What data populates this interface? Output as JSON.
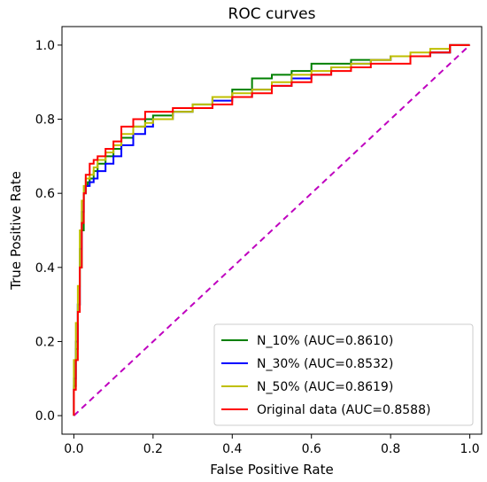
{
  "chart_data": {
    "type": "line",
    "title": "ROC curves",
    "xlabel": "False Positive Rate",
    "ylabel": "True Positive Rate",
    "xlim": [
      -0.03,
      1.03
    ],
    "ylim": [
      -0.05,
      1.05
    ],
    "xticks": [
      "0.0",
      "0.2",
      "0.4",
      "0.6",
      "0.8",
      "1.0"
    ],
    "yticks": [
      "0.0",
      "0.2",
      "0.4",
      "0.6",
      "0.8",
      "1.0"
    ],
    "grid": false,
    "legend_position": "lower-right",
    "reference_line": {
      "color": "#bf00bf",
      "style": "dashed",
      "x": [
        0,
        1
      ],
      "y": [
        0,
        1
      ]
    },
    "series": [
      {
        "name": "N_10% (AUC=0.8610)",
        "color": "#008000",
        "x": [
          0.0,
          0.005,
          0.01,
          0.015,
          0.02,
          0.025,
          0.03,
          0.035,
          0.04,
          0.05,
          0.06,
          0.08,
          0.1,
          0.12,
          0.15,
          0.18,
          0.2,
          0.25,
          0.3,
          0.35,
          0.4,
          0.45,
          0.5,
          0.55,
          0.6,
          0.65,
          0.7,
          0.75,
          0.8,
          0.85,
          0.9,
          0.95,
          1.0
        ],
        "y": [
          0.0,
          0.08,
          0.18,
          0.3,
          0.4,
          0.5,
          0.6,
          0.62,
          0.63,
          0.64,
          0.66,
          0.68,
          0.7,
          0.72,
          0.75,
          0.78,
          0.8,
          0.81,
          0.82,
          0.84,
          0.86,
          0.88,
          0.91,
          0.92,
          0.93,
          0.95,
          0.95,
          0.96,
          0.96,
          0.97,
          0.97,
          0.98,
          1.0
        ]
      },
      {
        "name": "N_30% (AUC=0.8532)",
        "color": "#0000ff",
        "x": [
          0.0,
          0.005,
          0.01,
          0.015,
          0.02,
          0.025,
          0.03,
          0.04,
          0.05,
          0.06,
          0.08,
          0.1,
          0.12,
          0.15,
          0.18,
          0.2,
          0.25,
          0.3,
          0.35,
          0.4,
          0.45,
          0.5,
          0.55,
          0.6,
          0.65,
          0.7,
          0.75,
          0.8,
          0.85,
          0.9,
          0.95,
          1.0
        ],
        "y": [
          0.0,
          0.1,
          0.2,
          0.3,
          0.45,
          0.55,
          0.6,
          0.62,
          0.63,
          0.64,
          0.66,
          0.68,
          0.7,
          0.73,
          0.76,
          0.78,
          0.8,
          0.82,
          0.83,
          0.85,
          0.86,
          0.88,
          0.89,
          0.91,
          0.92,
          0.94,
          0.95,
          0.96,
          0.97,
          0.97,
          0.98,
          1.0
        ]
      },
      {
        "name": "N_50% (AUC=0.8619)",
        "color": "#bfbf00",
        "x": [
          0.0,
          0.005,
          0.01,
          0.015,
          0.02,
          0.025,
          0.03,
          0.04,
          0.05,
          0.06,
          0.08,
          0.1,
          0.12,
          0.15,
          0.18,
          0.2,
          0.25,
          0.3,
          0.35,
          0.4,
          0.45,
          0.5,
          0.55,
          0.6,
          0.65,
          0.7,
          0.75,
          0.8,
          0.85,
          0.9,
          0.95,
          1.0
        ],
        "y": [
          0.0,
          0.15,
          0.25,
          0.35,
          0.5,
          0.58,
          0.62,
          0.64,
          0.65,
          0.67,
          0.69,
          0.71,
          0.73,
          0.76,
          0.78,
          0.79,
          0.8,
          0.82,
          0.84,
          0.86,
          0.87,
          0.88,
          0.9,
          0.92,
          0.93,
          0.94,
          0.95,
          0.96,
          0.97,
          0.98,
          0.99,
          1.0
        ]
      },
      {
        "name": "Original data (AUC=0.8588)",
        "color": "#ff0000",
        "x": [
          0.0,
          0.005,
          0.01,
          0.015,
          0.02,
          0.025,
          0.03,
          0.04,
          0.05,
          0.06,
          0.08,
          0.1,
          0.12,
          0.15,
          0.18,
          0.2,
          0.25,
          0.3,
          0.35,
          0.4,
          0.45,
          0.5,
          0.55,
          0.6,
          0.65,
          0.7,
          0.75,
          0.8,
          0.85,
          0.9,
          0.95,
          1.0
        ],
        "y": [
          0.0,
          0.07,
          0.15,
          0.28,
          0.4,
          0.52,
          0.6,
          0.65,
          0.68,
          0.69,
          0.7,
          0.72,
          0.74,
          0.78,
          0.8,
          0.82,
          0.82,
          0.83,
          0.83,
          0.84,
          0.86,
          0.87,
          0.89,
          0.9,
          0.92,
          0.93,
          0.94,
          0.95,
          0.95,
          0.97,
          0.98,
          1.0
        ]
      }
    ]
  }
}
